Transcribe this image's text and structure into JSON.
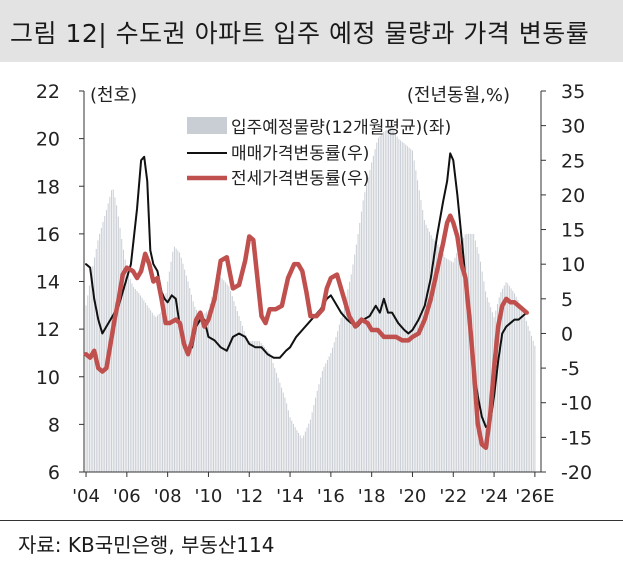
{
  "page": {
    "title": "그림 12| 수도권 아파트 입주 예정 물량과 가격 변동률",
    "source": "자료: KB국민은행, 부동산114"
  },
  "chart_data": {
    "type": "bar",
    "left_unit": "(천호)",
    "right_unit": "(전년동월,%)",
    "x_range": [
      2003.9,
      2026.3
    ],
    "left_axis": {
      "range": [
        6,
        22
      ],
      "ticks": [
        6,
        8,
        10,
        12,
        14,
        16,
        18,
        20,
        22
      ]
    },
    "right_axis": {
      "range": [
        -20,
        35
      ],
      "ticks": [
        -20,
        -15,
        -10,
        -5,
        0,
        5,
        10,
        15,
        20,
        25,
        30,
        35
      ]
    },
    "x_ticks": [
      "'04",
      "'06",
      "'08",
      "'10",
      "'12",
      "'14",
      "'16",
      "'18",
      "'20",
      "'22",
      "'24",
      "'26E"
    ],
    "x_tick_years": [
      2004,
      2006,
      2008,
      2010,
      2012,
      2014,
      2016,
      2018,
      2020,
      2022,
      2024,
      2026
    ],
    "legend_position": "top-center",
    "colors": {
      "bars": "#c9ced4",
      "sale": "#111111",
      "jeonse": "#c0504d"
    },
    "series": [
      {
        "name": "입주예정물량(12개월평균)(좌)",
        "type": "bar",
        "axis": "left",
        "points": [
          [
            2004.0,
            13.0
          ],
          [
            2004.3,
            14.5
          ],
          [
            2004.6,
            15.8
          ],
          [
            2005.0,
            17.0
          ],
          [
            2005.3,
            18.0
          ],
          [
            2005.5,
            17.2
          ],
          [
            2005.8,
            15.5
          ],
          [
            2006.0,
            14.5
          ],
          [
            2006.3,
            13.8
          ],
          [
            2006.6,
            13.5
          ],
          [
            2007.0,
            13.0
          ],
          [
            2007.4,
            12.5
          ],
          [
            2007.8,
            12.8
          ],
          [
            2008.0,
            14.0
          ],
          [
            2008.3,
            15.5
          ],
          [
            2008.6,
            15.2
          ],
          [
            2009.0,
            14.0
          ],
          [
            2009.3,
            13.0
          ],
          [
            2009.6,
            12.5
          ],
          [
            2010.0,
            12.8
          ],
          [
            2010.3,
            13.8
          ],
          [
            2010.6,
            14.2
          ],
          [
            2011.0,
            13.8
          ],
          [
            2011.4,
            12.8
          ],
          [
            2011.8,
            11.8
          ],
          [
            2012.0,
            11.5
          ],
          [
            2012.5,
            11.5
          ],
          [
            2013.0,
            11.0
          ],
          [
            2013.4,
            10.0
          ],
          [
            2013.8,
            9.0
          ],
          [
            2014.0,
            8.3
          ],
          [
            2014.3,
            7.8
          ],
          [
            2014.6,
            7.4
          ],
          [
            2015.0,
            8.2
          ],
          [
            2015.3,
            9.3
          ],
          [
            2015.6,
            10.3
          ],
          [
            2016.0,
            11.0
          ],
          [
            2016.3,
            11.8
          ],
          [
            2016.6,
            12.8
          ],
          [
            2017.0,
            14.3
          ],
          [
            2017.3,
            15.8
          ],
          [
            2017.6,
            17.5
          ],
          [
            2018.0,
            19.0
          ],
          [
            2018.3,
            20.0
          ],
          [
            2018.6,
            20.3
          ],
          [
            2019.0,
            20.5
          ],
          [
            2019.3,
            20.0
          ],
          [
            2019.6,
            19.8
          ],
          [
            2020.0,
            19.5
          ],
          [
            2020.3,
            18.0
          ],
          [
            2020.6,
            16.5
          ],
          [
            2021.0,
            15.8
          ],
          [
            2021.3,
            15.5
          ],
          [
            2021.6,
            15.0
          ],
          [
            2022.0,
            14.8
          ],
          [
            2022.3,
            15.5
          ],
          [
            2022.6,
            16.0
          ],
          [
            2023.0,
            16.0
          ],
          [
            2023.3,
            15.0
          ],
          [
            2023.6,
            13.5
          ],
          [
            2024.0,
            12.5
          ],
          [
            2024.3,
            13.5
          ],
          [
            2024.6,
            14.0
          ],
          [
            2025.0,
            13.5
          ],
          [
            2025.3,
            13.0
          ],
          [
            2025.6,
            12.3
          ],
          [
            2026.0,
            11.3
          ]
        ]
      },
      {
        "name": "매매가격변동률(우)",
        "type": "line",
        "axis": "right",
        "points": [
          [
            2004.0,
            10.0
          ],
          [
            2004.2,
            9.5
          ],
          [
            2004.4,
            5.0
          ],
          [
            2004.6,
            2.0
          ],
          [
            2004.8,
            0.0
          ],
          [
            2005.0,
            1.0
          ],
          [
            2005.3,
            2.5
          ],
          [
            2005.6,
            4.0
          ],
          [
            2005.9,
            7.0
          ],
          [
            2006.2,
            10.0
          ],
          [
            2006.5,
            18.0
          ],
          [
            2006.7,
            25.0
          ],
          [
            2006.85,
            25.5
          ],
          [
            2007.0,
            22.0
          ],
          [
            2007.15,
            12.0
          ],
          [
            2007.3,
            10.0
          ],
          [
            2007.5,
            9.0
          ],
          [
            2007.7,
            6.0
          ],
          [
            2007.85,
            5.0
          ],
          [
            2008.0,
            4.5
          ],
          [
            2008.2,
            5.5
          ],
          [
            2008.4,
            5.0
          ],
          [
            2008.6,
            1.0
          ],
          [
            2008.8,
            -2.0
          ],
          [
            2009.0,
            -2.5
          ],
          [
            2009.2,
            -2.0
          ],
          [
            2009.4,
            1.0
          ],
          [
            2009.6,
            2.0
          ],
          [
            2009.8,
            2.0
          ],
          [
            2010.0,
            -0.5
          ],
          [
            2010.3,
            -1.0
          ],
          [
            2010.6,
            -2.0
          ],
          [
            2010.9,
            -2.5
          ],
          [
            2011.2,
            -0.5
          ],
          [
            2011.5,
            0.0
          ],
          [
            2011.8,
            -0.5
          ],
          [
            2012.0,
            -1.5
          ],
          [
            2012.3,
            -2.0
          ],
          [
            2012.6,
            -2.0
          ],
          [
            2012.9,
            -3.0
          ],
          [
            2013.2,
            -3.5
          ],
          [
            2013.5,
            -3.5
          ],
          [
            2013.8,
            -2.5
          ],
          [
            2014.0,
            -2.0
          ],
          [
            2014.3,
            -0.5
          ],
          [
            2014.6,
            0.5
          ],
          [
            2014.9,
            1.5
          ],
          [
            2015.2,
            2.5
          ],
          [
            2015.5,
            3.5
          ],
          [
            2015.8,
            5.0
          ],
          [
            2016.0,
            5.5
          ],
          [
            2016.2,
            4.5
          ],
          [
            2016.5,
            3.0
          ],
          [
            2016.8,
            2.0
          ],
          [
            2017.0,
            1.5
          ],
          [
            2017.3,
            1.0
          ],
          [
            2017.6,
            2.0
          ],
          [
            2017.9,
            2.5
          ],
          [
            2018.2,
            4.0
          ],
          [
            2018.4,
            3.0
          ],
          [
            2018.6,
            5.0
          ],
          [
            2018.8,
            3.0
          ],
          [
            2019.0,
            3.0
          ],
          [
            2019.3,
            1.5
          ],
          [
            2019.6,
            0.5
          ],
          [
            2019.8,
            0.0
          ],
          [
            2020.0,
            0.5
          ],
          [
            2020.3,
            2.0
          ],
          [
            2020.6,
            4.0
          ],
          [
            2020.9,
            8.0
          ],
          [
            2021.2,
            14.0
          ],
          [
            2021.5,
            19.0
          ],
          [
            2021.7,
            22.0
          ],
          [
            2021.85,
            26.0
          ],
          [
            2022.0,
            25.0
          ],
          [
            2022.2,
            20.0
          ],
          [
            2022.4,
            14.0
          ],
          [
            2022.6,
            8.0
          ],
          [
            2022.8,
            2.0
          ],
          [
            2023.0,
            -5.0
          ],
          [
            2023.2,
            -9.0
          ],
          [
            2023.4,
            -12.0
          ],
          [
            2023.6,
            -13.5
          ],
          [
            2023.8,
            -13.0
          ],
          [
            2024.0,
            -9.0
          ],
          [
            2024.2,
            -4.0
          ],
          [
            2024.4,
            0.0
          ],
          [
            2024.6,
            1.0
          ],
          [
            2024.8,
            1.5
          ],
          [
            2025.0,
            2.0
          ],
          [
            2025.2,
            2.0
          ],
          [
            2025.4,
            2.5
          ],
          [
            2025.6,
            3.0
          ]
        ]
      },
      {
        "name": "전세가격변동률(우)",
        "type": "line",
        "axis": "right",
        "points": [
          [
            2004.0,
            -3.0
          ],
          [
            2004.2,
            -3.5
          ],
          [
            2004.4,
            -2.5
          ],
          [
            2004.6,
            -5.0
          ],
          [
            2004.8,
            -5.5
          ],
          [
            2005.0,
            -5.0
          ],
          [
            2005.2,
            -1.5
          ],
          [
            2005.4,
            2.0
          ],
          [
            2005.6,
            5.0
          ],
          [
            2005.8,
            8.5
          ],
          [
            2006.0,
            9.5
          ],
          [
            2006.3,
            9.0
          ],
          [
            2006.5,
            8.0
          ],
          [
            2006.7,
            9.0
          ],
          [
            2006.9,
            11.5
          ],
          [
            2007.1,
            10.0
          ],
          [
            2007.3,
            7.5
          ],
          [
            2007.5,
            8.0
          ],
          [
            2007.7,
            5.0
          ],
          [
            2007.9,
            1.5
          ],
          [
            2008.1,
            1.5
          ],
          [
            2008.4,
            2.0
          ],
          [
            2008.6,
            1.5
          ],
          [
            2008.8,
            -1.5
          ],
          [
            2009.0,
            -3.0
          ],
          [
            2009.2,
            -1.0
          ],
          [
            2009.4,
            2.0
          ],
          [
            2009.6,
            3.0
          ],
          [
            2009.8,
            1.0
          ],
          [
            2010.0,
            2.0
          ],
          [
            2010.3,
            5.0
          ],
          [
            2010.6,
            10.5
          ],
          [
            2010.9,
            11.0
          ],
          [
            2011.2,
            6.5
          ],
          [
            2011.5,
            7.0
          ],
          [
            2011.8,
            10.5
          ],
          [
            2012.0,
            14.0
          ],
          [
            2012.2,
            13.5
          ],
          [
            2012.4,
            8.0
          ],
          [
            2012.6,
            2.5
          ],
          [
            2012.8,
            1.5
          ],
          [
            2013.0,
            3.5
          ],
          [
            2013.3,
            3.5
          ],
          [
            2013.6,
            4.0
          ],
          [
            2013.9,
            8.0
          ],
          [
            2014.2,
            10.0
          ],
          [
            2014.4,
            10.0
          ],
          [
            2014.6,
            9.0
          ],
          [
            2014.8,
            6.0
          ],
          [
            2015.0,
            2.5
          ],
          [
            2015.3,
            2.5
          ],
          [
            2015.6,
            3.5
          ],
          [
            2015.8,
            6.5
          ],
          [
            2016.0,
            8.0
          ],
          [
            2016.3,
            8.5
          ],
          [
            2016.6,
            5.5
          ],
          [
            2016.9,
            2.5
          ],
          [
            2017.2,
            1.0
          ],
          [
            2017.5,
            2.0
          ],
          [
            2017.8,
            1.5
          ],
          [
            2018.0,
            0.5
          ],
          [
            2018.3,
            0.5
          ],
          [
            2018.6,
            -0.5
          ],
          [
            2018.9,
            -0.5
          ],
          [
            2019.2,
            -0.5
          ],
          [
            2019.5,
            -1.0
          ],
          [
            2019.8,
            -1.0
          ],
          [
            2020.0,
            -0.5
          ],
          [
            2020.3,
            0.0
          ],
          [
            2020.6,
            2.0
          ],
          [
            2020.9,
            5.0
          ],
          [
            2021.2,
            9.0
          ],
          [
            2021.5,
            13.0
          ],
          [
            2021.7,
            16.0
          ],
          [
            2021.85,
            17.0
          ],
          [
            2022.0,
            16.0
          ],
          [
            2022.2,
            14.0
          ],
          [
            2022.4,
            10.0
          ],
          [
            2022.6,
            8.0
          ],
          [
            2022.8,
            2.0
          ],
          [
            2023.0,
            -5.0
          ],
          [
            2023.2,
            -13.0
          ],
          [
            2023.4,
            -16.0
          ],
          [
            2023.6,
            -16.5
          ],
          [
            2023.8,
            -12.0
          ],
          [
            2024.0,
            -5.0
          ],
          [
            2024.2,
            1.0
          ],
          [
            2024.4,
            4.0
          ],
          [
            2024.6,
            5.0
          ],
          [
            2024.8,
            4.5
          ],
          [
            2025.0,
            4.5
          ],
          [
            2025.2,
            4.0
          ],
          [
            2025.4,
            3.5
          ],
          [
            2025.6,
            3.0
          ]
        ]
      }
    ]
  }
}
